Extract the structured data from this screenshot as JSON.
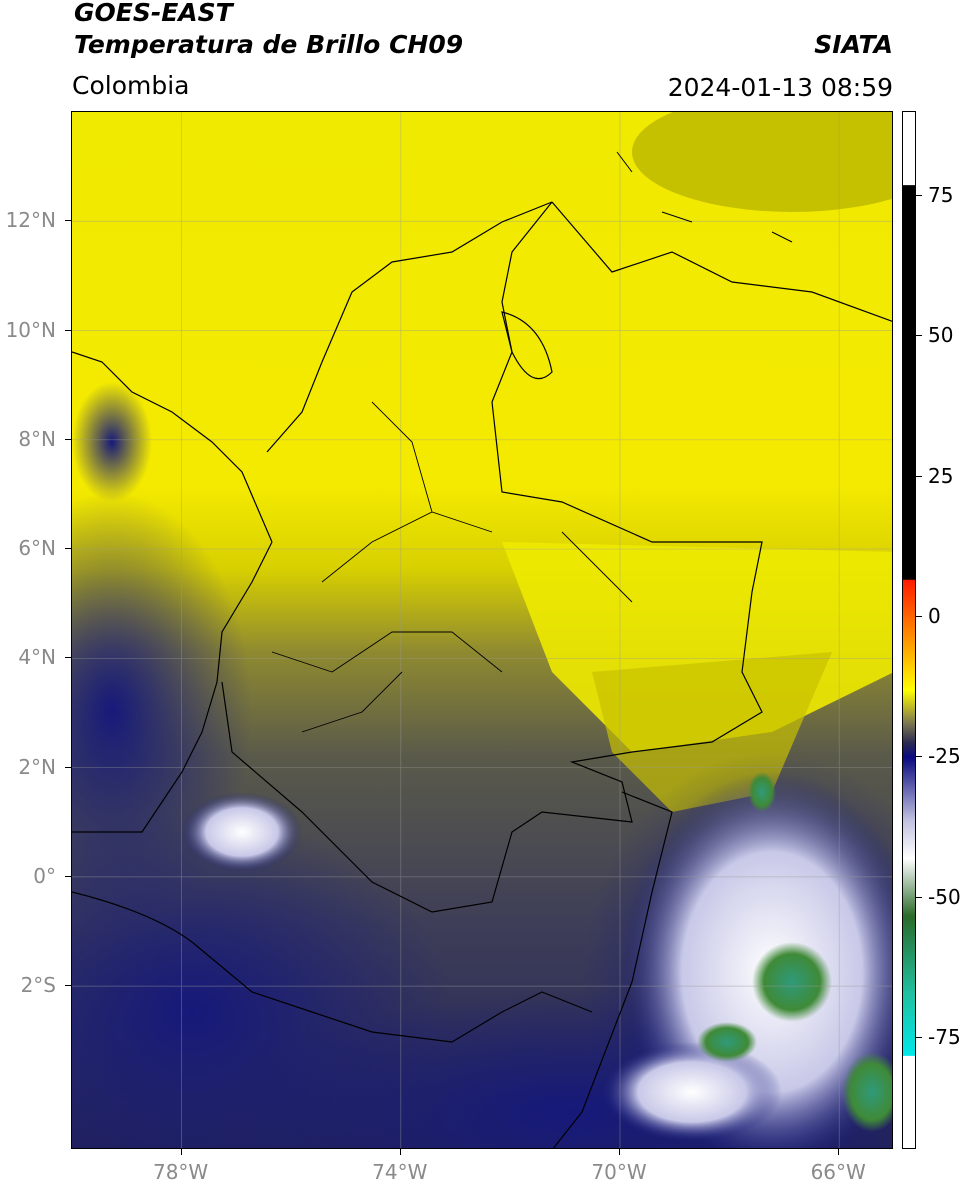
{
  "header": {
    "satellite": "GOES-EAST",
    "product": "Temperatura de Brillo CH09",
    "region": "Colombia",
    "agency": "SIATA",
    "timestamp": "2024-01-13 08:59"
  },
  "map": {
    "lat_labels": [
      {
        "text": "12°N",
        "value": 12
      },
      {
        "text": "10°N",
        "value": 10
      },
      {
        "text": "8°N",
        "value": 8
      },
      {
        "text": "6°N",
        "value": 6
      },
      {
        "text": "4°N",
        "value": 4
      },
      {
        "text": "2°N",
        "value": 2
      },
      {
        "text": "0°",
        "value": 0
      },
      {
        "text": "2°S",
        "value": -2
      }
    ],
    "lon_labels": [
      {
        "text": "78°W",
        "value": -78
      },
      {
        "text": "74°W",
        "value": -74
      },
      {
        "text": "70°W",
        "value": -70
      },
      {
        "text": "66°W",
        "value": -66
      }
    ],
    "extent": {
      "lon_min": -80,
      "lon_max": -65,
      "lat_min": -5,
      "lat_max": 14
    },
    "colors": {
      "warm_yellow": "#f2ef00",
      "olive": "#6f6a36",
      "dark_navy": "#1a1f6e",
      "cold_white": "#f4f4ff",
      "cold_green": "#3f8a38",
      "border": "#000000"
    }
  },
  "colorbar": {
    "ticks": [
      {
        "label": "75",
        "value": 75
      },
      {
        "label": "50",
        "value": 50
      },
      {
        "label": "25",
        "value": 25
      },
      {
        "label": "0",
        "value": 0
      },
      {
        "label": "-25",
        "value": -25
      },
      {
        "label": "-50",
        "value": -50
      },
      {
        "label": "-75",
        "value": -75
      }
    ],
    "range": [
      -95,
      90
    ],
    "stops": [
      {
        "value": 90,
        "color": "#000000"
      },
      {
        "value": 8,
        "color": "#000000"
      },
      {
        "value": 7.9,
        "color": "#ff1a00"
      },
      {
        "value": -5,
        "color": "#ff9900"
      },
      {
        "value": -15,
        "color": "#ffff00"
      },
      {
        "value": -22,
        "color": "#7a7450"
      },
      {
        "value": -26,
        "color": "#2a2a50"
      },
      {
        "value": -29,
        "color": "#0a0a80"
      },
      {
        "value": -42,
        "color": "#c0c0e0"
      },
      {
        "value": -50,
        "color": "#ffffff"
      },
      {
        "value": -62,
        "color": "#2a6a2a"
      },
      {
        "value": -78,
        "color": "#20c0a0"
      },
      {
        "value": -91,
        "color": "#00e8e8"
      },
      {
        "value": -91.1,
        "color": "#ffffff"
      },
      {
        "value": -95,
        "color": "#ffffff"
      }
    ]
  }
}
